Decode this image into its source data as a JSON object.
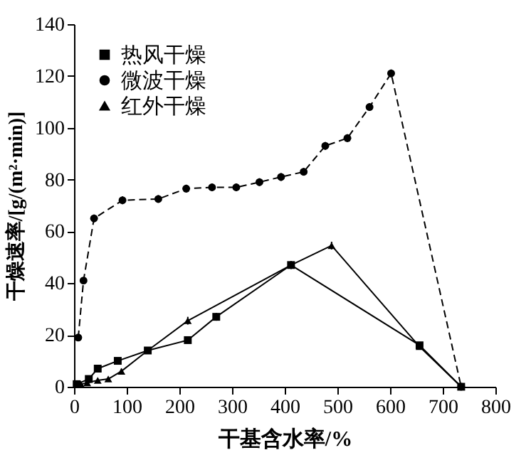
{
  "chart_data": {
    "type": "line",
    "xlabel": "干基含水率/%",
    "ylabel": "干燥速率/[g/(m²·min)]",
    "xlim": [
      0,
      800
    ],
    "xticks": [
      0,
      100,
      200,
      300,
      400,
      500,
      600,
      700,
      800
    ],
    "ylim": [
      0,
      140
    ],
    "yticks": [
      0,
      20,
      40,
      60,
      80,
      100,
      120,
      140
    ],
    "grid": false,
    "legend": "top left",
    "series": [
      {
        "name": "热风干燥",
        "color": "#000000",
        "marker": "square",
        "line_style": "solid",
        "x": [
          5,
          28,
          45,
          83,
          140,
          216,
          270,
          412,
          656,
          735
        ],
        "values": [
          1,
          3,
          7,
          10,
          14,
          18,
          27,
          47,
          16,
          0
        ],
        "errors": [
          null,
          null,
          1,
          1,
          1,
          1,
          1.5,
          1.5,
          1,
          null
        ]
      },
      {
        "name": "微波干燥",
        "color": "#000000",
        "marker": "circle",
        "line_style": "dashed",
        "x": [
          8,
          18,
          38,
          92,
          160,
          213,
          262,
          308,
          352,
          393,
          436,
          477,
          519,
          561,
          602,
          735
        ],
        "values": [
          19,
          41,
          65,
          72,
          72.5,
          76.5,
          77,
          77,
          79,
          81,
          83,
          93,
          96,
          108,
          121,
          0
        ],
        "errors": [
          1,
          1,
          1.5,
          1.5,
          1.5,
          1.5,
          1.5,
          1.5,
          1.5,
          1.5,
          1.5,
          1.5,
          1.5,
          1.5,
          1.5,
          null
        ]
      },
      {
        "name": "红外干燥",
        "color": "#000000",
        "marker": "triangle",
        "line_style": "solid",
        "x": [
          13,
          25,
          45,
          65,
          90,
          140,
          216,
          412,
          489,
          656,
          735
        ],
        "values": [
          1,
          1.5,
          2.5,
          3,
          6,
          14,
          25.5,
          47,
          54.5,
          15.5,
          0
        ],
        "errors": [
          null,
          null,
          null,
          null,
          1,
          null,
          1.5,
          1.5,
          1.5,
          1,
          null
        ]
      }
    ]
  }
}
